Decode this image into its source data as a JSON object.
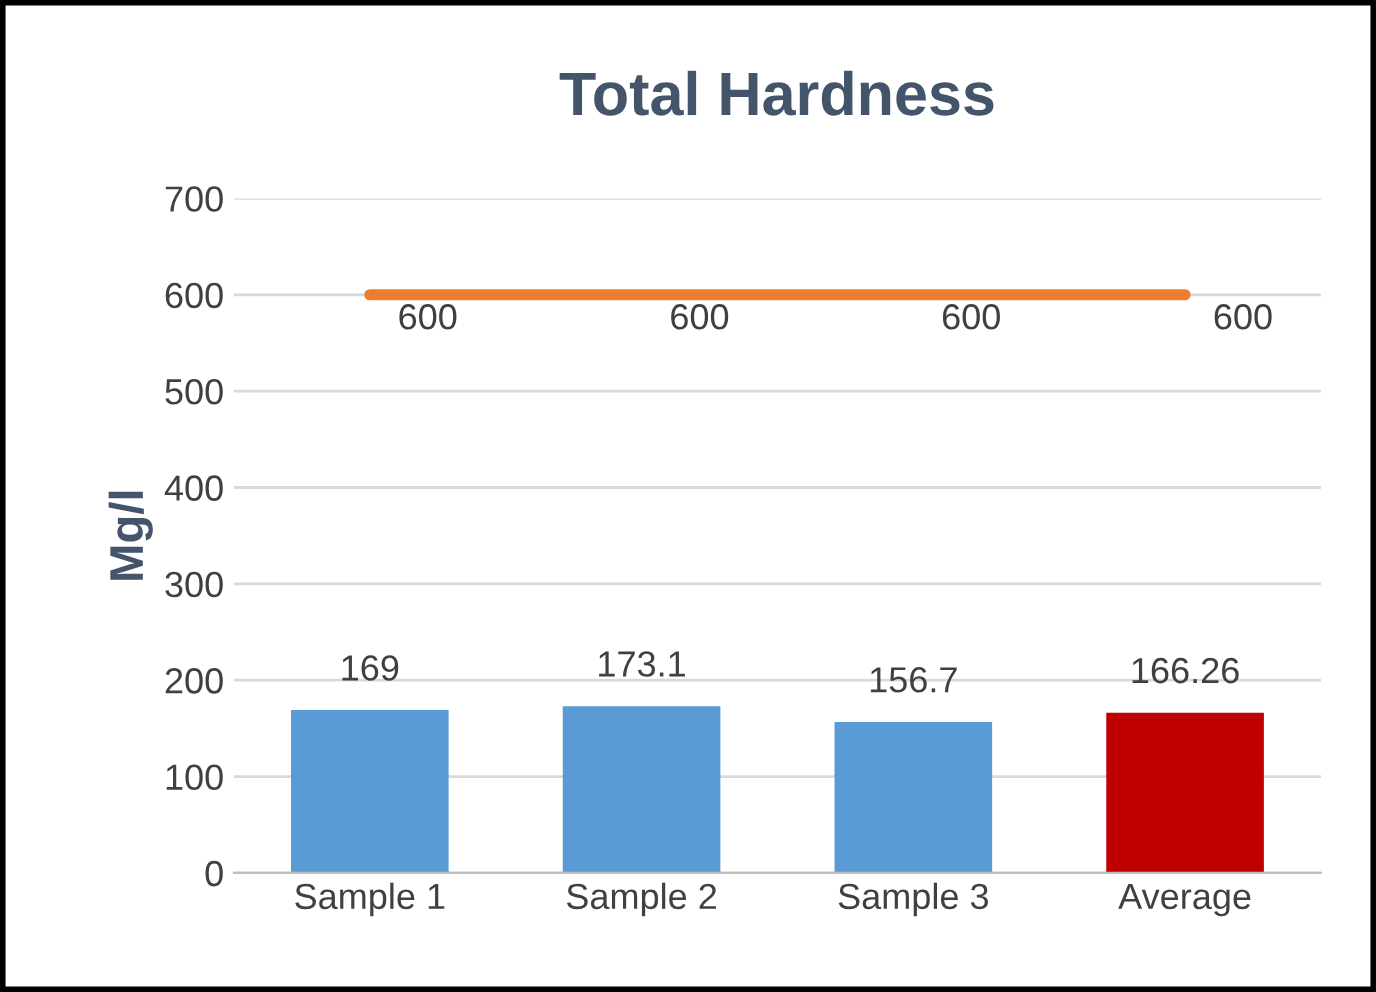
{
  "chart_data": {
    "type": "bar",
    "title": "Total Hardness",
    "ylabel": "Mg/l",
    "categories": [
      "Sample 1",
      "Sample 2",
      "Sample 3",
      "Average"
    ],
    "series": [
      {
        "values": [
          169,
          173.1,
          156.7,
          166.26
        ],
        "colors": [
          "#5b9bd5",
          "#5b9bd5",
          "#5b9bd5",
          "#c00000"
        ]
      },
      {
        "type": "line",
        "values": [
          600,
          600,
          600,
          600
        ],
        "color": "#ed7d31"
      }
    ],
    "ylim": [
      0,
      700
    ],
    "yticks": [
      0,
      100,
      200,
      300,
      400,
      500,
      600,
      700
    ],
    "grid": "y",
    "data_labels": true,
    "legend": false
  }
}
